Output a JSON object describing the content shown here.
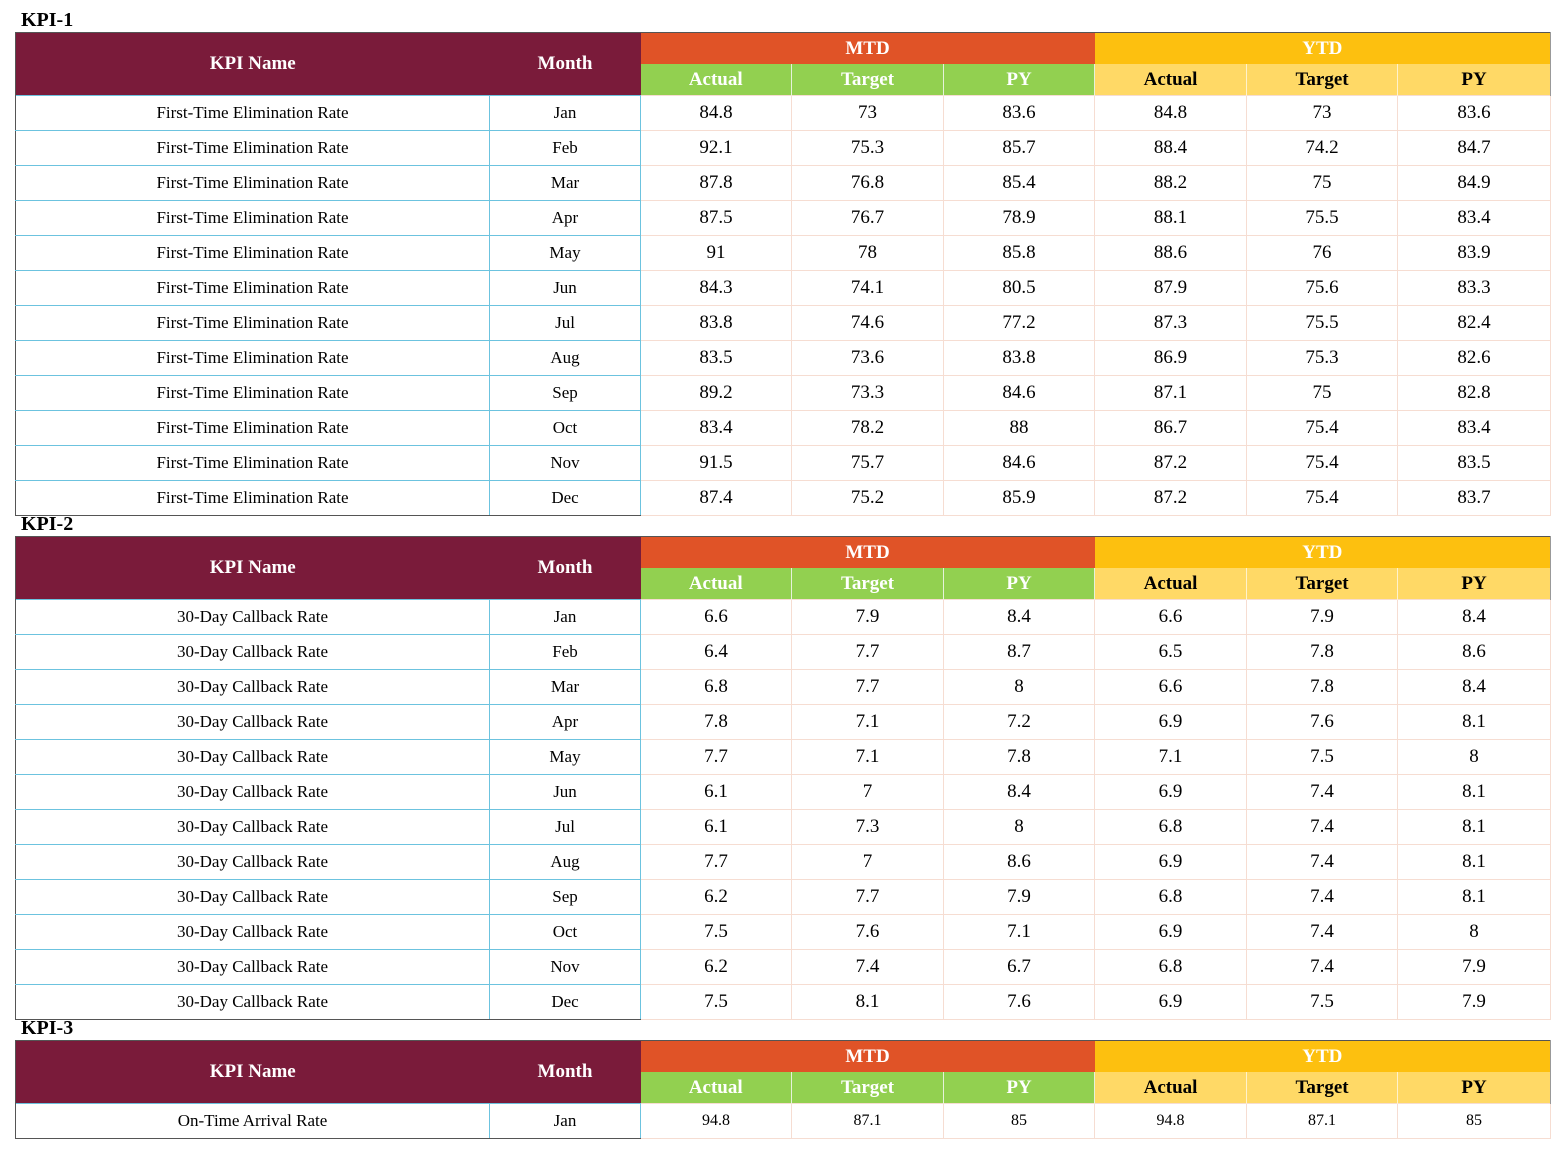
{
  "headers": {
    "kpi_name": "KPI Name",
    "month": "Month",
    "mtd": "MTD",
    "ytd": "YTD",
    "actual": "Actual",
    "target": "Target",
    "py": "PY"
  },
  "sections": [
    {
      "title": "KPI-1",
      "rows": [
        {
          "name": "First-Time Elimination Rate",
          "month": "Jan",
          "mtd_actual": "84.8",
          "mtd_target": "73",
          "mtd_py": "83.6",
          "ytd_actual": "84.8",
          "ytd_target": "73",
          "ytd_py": "83.6"
        },
        {
          "name": "First-Time Elimination Rate",
          "month": "Feb",
          "mtd_actual": "92.1",
          "mtd_target": "75.3",
          "mtd_py": "85.7",
          "ytd_actual": "88.4",
          "ytd_target": "74.2",
          "ytd_py": "84.7"
        },
        {
          "name": "First-Time Elimination Rate",
          "month": "Mar",
          "mtd_actual": "87.8",
          "mtd_target": "76.8",
          "mtd_py": "85.4",
          "ytd_actual": "88.2",
          "ytd_target": "75",
          "ytd_py": "84.9"
        },
        {
          "name": "First-Time Elimination Rate",
          "month": "Apr",
          "mtd_actual": "87.5",
          "mtd_target": "76.7",
          "mtd_py": "78.9",
          "ytd_actual": "88.1",
          "ytd_target": "75.5",
          "ytd_py": "83.4"
        },
        {
          "name": "First-Time Elimination Rate",
          "month": "May",
          "mtd_actual": "91",
          "mtd_target": "78",
          "mtd_py": "85.8",
          "ytd_actual": "88.6",
          "ytd_target": "76",
          "ytd_py": "83.9"
        },
        {
          "name": "First-Time Elimination Rate",
          "month": "Jun",
          "mtd_actual": "84.3",
          "mtd_target": "74.1",
          "mtd_py": "80.5",
          "ytd_actual": "87.9",
          "ytd_target": "75.6",
          "ytd_py": "83.3"
        },
        {
          "name": "First-Time Elimination Rate",
          "month": "Jul",
          "mtd_actual": "83.8",
          "mtd_target": "74.6",
          "mtd_py": "77.2",
          "ytd_actual": "87.3",
          "ytd_target": "75.5",
          "ytd_py": "82.4"
        },
        {
          "name": "First-Time Elimination Rate",
          "month": "Aug",
          "mtd_actual": "83.5",
          "mtd_target": "73.6",
          "mtd_py": "83.8",
          "ytd_actual": "86.9",
          "ytd_target": "75.3",
          "ytd_py": "82.6"
        },
        {
          "name": "First-Time Elimination Rate",
          "month": "Sep",
          "mtd_actual": "89.2",
          "mtd_target": "73.3",
          "mtd_py": "84.6",
          "ytd_actual": "87.1",
          "ytd_target": "75",
          "ytd_py": "82.8"
        },
        {
          "name": "First-Time Elimination Rate",
          "month": "Oct",
          "mtd_actual": "83.4",
          "mtd_target": "78.2",
          "mtd_py": "88",
          "ytd_actual": "86.7",
          "ytd_target": "75.4",
          "ytd_py": "83.4"
        },
        {
          "name": "First-Time Elimination Rate",
          "month": "Nov",
          "mtd_actual": "91.5",
          "mtd_target": "75.7",
          "mtd_py": "84.6",
          "ytd_actual": "87.2",
          "ytd_target": "75.4",
          "ytd_py": "83.5"
        },
        {
          "name": "First-Time Elimination Rate",
          "month": "Dec",
          "mtd_actual": "87.4",
          "mtd_target": "75.2",
          "mtd_py": "85.9",
          "ytd_actual": "87.2",
          "ytd_target": "75.4",
          "ytd_py": "83.7"
        }
      ]
    },
    {
      "title": "KPI-2",
      "rows": [
        {
          "name": "30-Day Callback Rate",
          "month": "Jan",
          "mtd_actual": "6.6",
          "mtd_target": "7.9",
          "mtd_py": "8.4",
          "ytd_actual": "6.6",
          "ytd_target": "7.9",
          "ytd_py": "8.4"
        },
        {
          "name": "30-Day Callback Rate",
          "month": "Feb",
          "mtd_actual": "6.4",
          "mtd_target": "7.7",
          "mtd_py": "8.7",
          "ytd_actual": "6.5",
          "ytd_target": "7.8",
          "ytd_py": "8.6"
        },
        {
          "name": "30-Day Callback Rate",
          "month": "Mar",
          "mtd_actual": "6.8",
          "mtd_target": "7.7",
          "mtd_py": "8",
          "ytd_actual": "6.6",
          "ytd_target": "7.8",
          "ytd_py": "8.4"
        },
        {
          "name": "30-Day Callback Rate",
          "month": "Apr",
          "mtd_actual": "7.8",
          "mtd_target": "7.1",
          "mtd_py": "7.2",
          "ytd_actual": "6.9",
          "ytd_target": "7.6",
          "ytd_py": "8.1"
        },
        {
          "name": "30-Day Callback Rate",
          "month": "May",
          "mtd_actual": "7.7",
          "mtd_target": "7.1",
          "mtd_py": "7.8",
          "ytd_actual": "7.1",
          "ytd_target": "7.5",
          "ytd_py": "8"
        },
        {
          "name": "30-Day Callback Rate",
          "month": "Jun",
          "mtd_actual": "6.1",
          "mtd_target": "7",
          "mtd_py": "8.4",
          "ytd_actual": "6.9",
          "ytd_target": "7.4",
          "ytd_py": "8.1"
        },
        {
          "name": "30-Day Callback Rate",
          "month": "Jul",
          "mtd_actual": "6.1",
          "mtd_target": "7.3",
          "mtd_py": "8",
          "ytd_actual": "6.8",
          "ytd_target": "7.4",
          "ytd_py": "8.1"
        },
        {
          "name": "30-Day Callback Rate",
          "month": "Aug",
          "mtd_actual": "7.7",
          "mtd_target": "7",
          "mtd_py": "8.6",
          "ytd_actual": "6.9",
          "ytd_target": "7.4",
          "ytd_py": "8.1"
        },
        {
          "name": "30-Day Callback Rate",
          "month": "Sep",
          "mtd_actual": "6.2",
          "mtd_target": "7.7",
          "mtd_py": "7.9",
          "ytd_actual": "6.8",
          "ytd_target": "7.4",
          "ytd_py": "8.1"
        },
        {
          "name": "30-Day Callback Rate",
          "month": "Oct",
          "mtd_actual": "7.5",
          "mtd_target": "7.6",
          "mtd_py": "7.1",
          "ytd_actual": "6.9",
          "ytd_target": "7.4",
          "ytd_py": "8"
        },
        {
          "name": "30-Day Callback Rate",
          "month": "Nov",
          "mtd_actual": "6.2",
          "mtd_target": "7.4",
          "mtd_py": "6.7",
          "ytd_actual": "6.8",
          "ytd_target": "7.4",
          "ytd_py": "7.9"
        },
        {
          "name": "30-Day Callback Rate",
          "month": "Dec",
          "mtd_actual": "7.5",
          "mtd_target": "8.1",
          "mtd_py": "7.6",
          "ytd_actual": "6.9",
          "ytd_target": "7.5",
          "ytd_py": "7.9"
        }
      ]
    },
    {
      "title": "KPI-3",
      "rows": [
        {
          "name": "On-Time Arrival Rate",
          "month": "Jan",
          "mtd_actual": "94.8",
          "mtd_target": "87.1",
          "mtd_py": "85",
          "ytd_actual": "94.8",
          "ytd_target": "87.1",
          "ytd_py": "85"
        }
      ]
    }
  ]
}
